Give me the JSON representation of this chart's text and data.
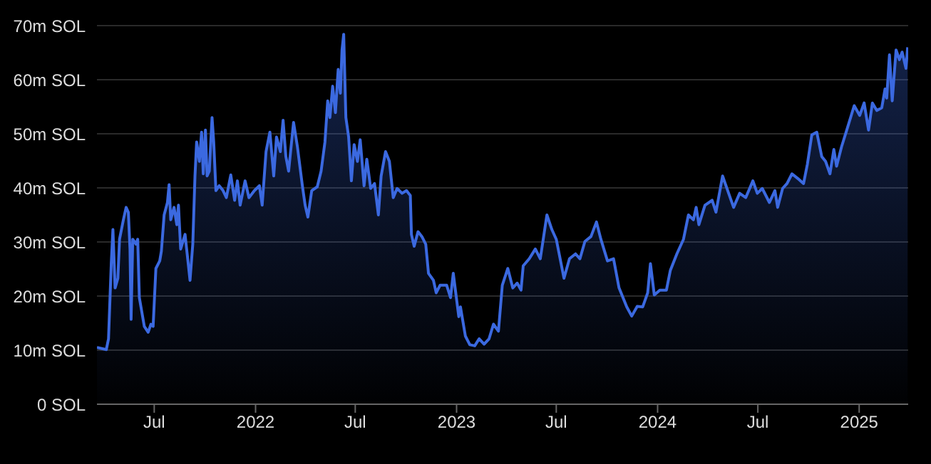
{
  "chart_data": {
    "type": "area",
    "x": [
      "2021-03-19",
      "2021-04-05",
      "2021-04-09",
      "2021-04-14",
      "2021-04-17",
      "2021-04-21",
      "2021-04-26",
      "2021-04-29",
      "2021-05-06",
      "2021-05-11",
      "2021-05-15",
      "2021-05-18",
      "2021-05-20",
      "2021-05-23",
      "2021-05-29",
      "2021-06-01",
      "2021-06-04",
      "2021-06-13",
      "2021-06-20",
      "2021-06-25",
      "2021-06-29",
      "2021-07-04",
      "2021-07-11",
      "2021-07-14",
      "2021-07-19",
      "2021-07-25",
      "2021-07-28",
      "2021-07-31",
      "2021-08-06",
      "2021-08-11",
      "2021-08-14",
      "2021-08-18",
      "2021-08-26",
      "2021-09-04",
      "2021-09-09",
      "2021-09-13",
      "2021-09-16",
      "2021-09-21",
      "2021-09-25",
      "2021-09-28",
      "2021-10-02",
      "2021-10-05",
      "2021-10-09",
      "2021-10-14",
      "2021-10-17",
      "2021-10-21",
      "2021-10-27",
      "2021-11-03",
      "2021-11-09",
      "2021-11-17",
      "2021-11-24",
      "2021-11-29",
      "2021-12-04",
      "2021-12-13",
      "2021-12-20",
      "2021-12-30",
      "2022-01-08",
      "2022-01-13",
      "2022-01-20",
      "2022-01-27",
      "2022-02-03",
      "2022-02-08",
      "2022-02-15",
      "2022-02-20",
      "2022-02-25",
      "2022-03-02",
      "2022-03-11",
      "2022-03-18",
      "2022-03-27",
      "2022-04-01",
      "2022-04-06",
      "2022-04-13",
      "2022-04-23",
      "2022-04-30",
      "2022-05-07",
      "2022-05-12",
      "2022-05-16",
      "2022-05-21",
      "2022-05-26",
      "2022-05-31",
      "2022-06-04",
      "2022-06-07",
      "2022-06-10",
      "2022-06-14",
      "2022-06-19",
      "2022-06-24",
      "2022-06-29",
      "2022-07-05",
      "2022-07-10",
      "2022-07-17",
      "2022-07-22",
      "2022-07-29",
      "2022-08-05",
      "2022-08-12",
      "2022-08-17",
      "2022-08-25",
      "2022-09-01",
      "2022-09-08",
      "2022-09-15",
      "2022-09-24",
      "2022-10-02",
      "2022-10-09",
      "2022-10-11",
      "2022-10-16",
      "2022-10-23",
      "2022-10-30",
      "2022-11-06",
      "2022-11-11",
      "2022-11-20",
      "2022-11-25",
      "2022-12-02",
      "2022-12-14",
      "2022-12-21",
      "2022-12-26",
      "2023-01-05",
      "2023-01-08",
      "2023-01-17",
      "2023-01-25",
      "2023-02-03",
      "2023-02-11",
      "2023-02-20",
      "2023-03-01",
      "2023-03-09",
      "2023-03-18",
      "2023-03-25",
      "2023-04-04",
      "2023-04-13",
      "2023-04-21",
      "2023-04-28",
      "2023-05-02",
      "2023-05-13",
      "2023-05-24",
      "2023-06-02",
      "2023-06-14",
      "2023-06-23",
      "2023-07-01",
      "2023-07-15",
      "2023-07-25",
      "2023-08-05",
      "2023-08-13",
      "2023-08-22",
      "2023-09-02",
      "2023-09-12",
      "2023-09-20",
      "2023-10-02",
      "2023-10-13",
      "2023-10-23",
      "2023-11-06",
      "2023-11-15",
      "2023-11-25",
      "2023-12-05",
      "2023-12-14",
      "2023-12-19",
      "2023-12-26",
      "2024-01-05",
      "2024-01-17",
      "2024-01-24",
      "2024-02-05",
      "2024-02-17",
      "2024-02-26",
      "2024-03-06",
      "2024-03-11",
      "2024-03-16",
      "2024-03-27",
      "2024-04-09",
      "2024-04-16",
      "2024-04-28",
      "2024-05-09",
      "2024-05-18",
      "2024-05-29",
      "2024-06-09",
      "2024-06-22",
      "2024-06-30",
      "2024-07-09",
      "2024-07-22",
      "2024-08-01",
      "2024-08-06",
      "2024-08-15",
      "2024-08-23",
      "2024-09-01",
      "2024-09-12",
      "2024-09-22",
      "2024-09-29",
      "2024-10-07",
      "2024-10-16",
      "2024-10-25",
      "2024-11-01",
      "2024-11-09",
      "2024-11-16",
      "2024-11-21",
      "2024-11-30",
      "2024-12-11",
      "2024-12-23",
      "2025-01-02",
      "2025-01-10",
      "2025-01-18",
      "2025-01-25",
      "2025-02-02",
      "2025-02-11",
      "2025-02-17",
      "2025-02-20",
      "2025-02-25",
      "2025-03-02",
      "2025-03-09",
      "2025-03-15",
      "2025-03-20",
      "2025-03-27",
      "2025-03-30"
    ],
    "series": [
      {
        "color": "#3b69e0",
        "values": [
          10.5,
          10.1,
          12.1,
          26,
          32.3,
          21.5,
          23.3,
          30.5,
          34.1,
          36.4,
          35.5,
          28.7,
          15.7,
          30.5,
          29.6,
          30.5,
          19.7,
          14.4,
          13.3,
          14.8,
          14.4,
          25.1,
          26.5,
          28.3,
          35,
          37.3,
          40.6,
          34.1,
          36.4,
          33.2,
          36.8,
          28.7,
          31.4,
          22.9,
          29.6,
          42.2,
          48.5,
          44.9,
          50.3,
          42.6,
          50.7,
          42.2,
          43.1,
          53,
          48.5,
          39.5,
          40.4,
          39.5,
          38.2,
          42.4,
          37.7,
          41.3,
          36.8,
          41.3,
          38.2,
          39.5,
          40.4,
          36.8,
          46.7,
          50.3,
          42.2,
          49.4,
          46.7,
          52.5,
          45.8,
          43.1,
          52.1,
          47.6,
          40.4,
          36.8,
          34.6,
          39.5,
          40.2,
          43.1,
          48.5,
          56.1,
          53,
          58.8,
          53.9,
          61.9,
          57.5,
          65.5,
          68.4,
          53,
          49.4,
          41.3,
          48,
          44.9,
          48.9,
          40.4,
          45.3,
          39.9,
          40.8,
          35,
          42.2,
          46.7,
          44.9,
          38.2,
          39.9,
          39,
          39.5,
          38.6,
          31.4,
          29.2,
          31.9,
          31,
          29.6,
          24.2,
          22.9,
          20.6,
          22,
          22,
          19.7,
          24.2,
          16.2,
          18,
          12.6,
          11,
          10.8,
          12.1,
          11.1,
          12.1,
          14.8,
          13.5,
          22,
          25.1,
          21.5,
          22.4,
          21.1,
          25.6,
          26.9,
          28.7,
          26.9,
          35,
          32.3,
          30.5,
          23.3,
          26.9,
          27.8,
          26.9,
          30.1,
          31,
          33.7,
          30.5,
          26.5,
          26.9,
          21.5,
          18,
          16.3,
          18.1,
          18,
          20.6,
          26,
          20.2,
          21.1,
          21.1,
          24.7,
          27.8,
          30.5,
          35,
          34.1,
          36.4,
          33.2,
          36.8,
          37.7,
          35.5,
          42.2,
          39,
          36.4,
          39,
          38.2,
          41.3,
          39,
          39.9,
          37.3,
          39.5,
          36.4,
          39.9,
          40.8,
          42.6,
          41.7,
          40.8,
          44.4,
          49.8,
          50.3,
          45.8,
          44.9,
          42.6,
          47.1,
          44,
          47.6,
          51.2,
          55.2,
          53.4,
          55.7,
          50.7,
          55.7,
          54.3,
          54.8,
          58.3,
          56.6,
          64.6,
          56.1,
          65.5,
          63.7,
          65.1,
          62.1,
          66
        ]
      }
    ],
    "xlim": [
      "2021-03-19",
      "2025-03-31"
    ],
    "xticks": [
      {
        "value": "2021-07-01",
        "label": "Jul"
      },
      {
        "value": "2022-01-01",
        "label": "2022"
      },
      {
        "value": "2022-07-01",
        "label": "Jul"
      },
      {
        "value": "2023-01-01",
        "label": "2023"
      },
      {
        "value": "2023-07-01",
        "label": "Jul"
      },
      {
        "value": "2024-01-01",
        "label": "2024"
      },
      {
        "value": "2024-07-01",
        "label": "Jul"
      },
      {
        "value": "2025-01-01",
        "label": "2025"
      }
    ],
    "ylim": [
      0,
      70
    ],
    "yticks": [
      {
        "value": 0,
        "label": "0 SOL"
      },
      {
        "value": 10,
        "label": "10m SOL"
      },
      {
        "value": 20,
        "label": "20m SOL"
      },
      {
        "value": 30,
        "label": "30m SOL"
      },
      {
        "value": 40,
        "label": "40m SOL"
      },
      {
        "value": 50,
        "label": "50m SOL"
      },
      {
        "value": 60,
        "label": "60m SOL"
      },
      {
        "value": 70,
        "label": "70m SOL"
      }
    ],
    "grid": "y"
  }
}
